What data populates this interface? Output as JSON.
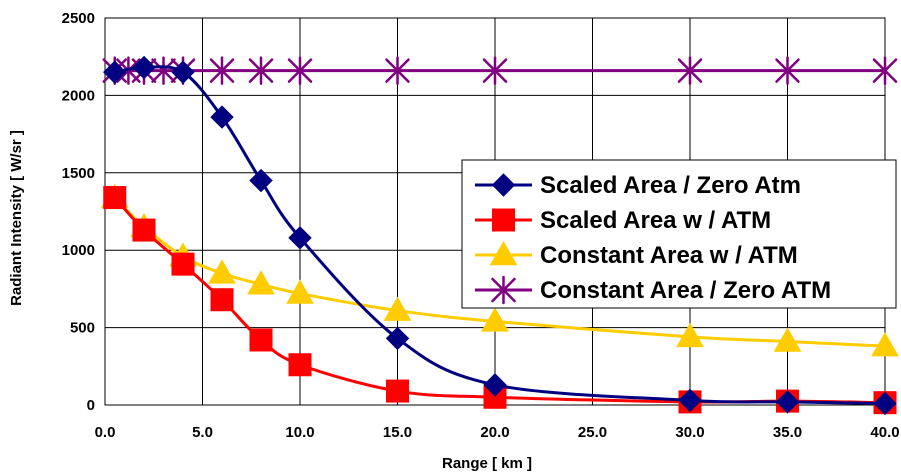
{
  "chart_data": {
    "type": "line",
    "title": "",
    "xlabel": "Range [ km ]",
    "ylabel": "Radiant Intensity [ W/sr ]",
    "xlim": [
      0,
      40
    ],
    "ylim": [
      0,
      2500
    ],
    "x_ticks": [
      "0.0",
      "5.0",
      "10.0",
      "15.0",
      "20.0",
      "25.0",
      "30.0",
      "35.0",
      "40.0"
    ],
    "y_ticks": [
      "0",
      "500",
      "1000",
      "1500",
      "2000",
      "2500"
    ],
    "grid": true,
    "legend_position": "right",
    "series": [
      {
        "name": "Scaled Area / Zero Atm",
        "color": "#000080",
        "marker": "diamond",
        "x": [
          0.5,
          2,
          4,
          6,
          8,
          10,
          15,
          20,
          30,
          35,
          40
        ],
        "y": [
          2150,
          2180,
          2150,
          1860,
          1450,
          1080,
          430,
          130,
          30,
          20,
          10
        ]
      },
      {
        "name": "Scaled Area w / ATM",
        "color": "#ff0000",
        "marker": "square",
        "x": [
          0.5,
          2,
          4,
          6,
          8,
          10,
          15,
          20,
          30,
          35,
          40
        ],
        "y": [
          1340,
          1130,
          910,
          680,
          420,
          260,
          90,
          50,
          20,
          25,
          15
        ]
      },
      {
        "name": "Constant Area w / ATM",
        "color": "#ffcc00",
        "marker": "triangle",
        "x": [
          0.5,
          2,
          4,
          6,
          8,
          10,
          15,
          20,
          30,
          35,
          40
        ],
        "y": [
          1340,
          1150,
          960,
          850,
          780,
          720,
          610,
          540,
          440,
          410,
          380
        ]
      },
      {
        "name": "Constant Area / Zero ATM",
        "color": "#800080",
        "marker": "star",
        "x": [
          0.5,
          1.2,
          2,
          3,
          4,
          6,
          8,
          10,
          15,
          20,
          30,
          35,
          40
        ],
        "y": [
          2160,
          2160,
          2160,
          2160,
          2160,
          2160,
          2160,
          2160,
          2160,
          2160,
          2160,
          2160,
          2160
        ]
      }
    ]
  }
}
